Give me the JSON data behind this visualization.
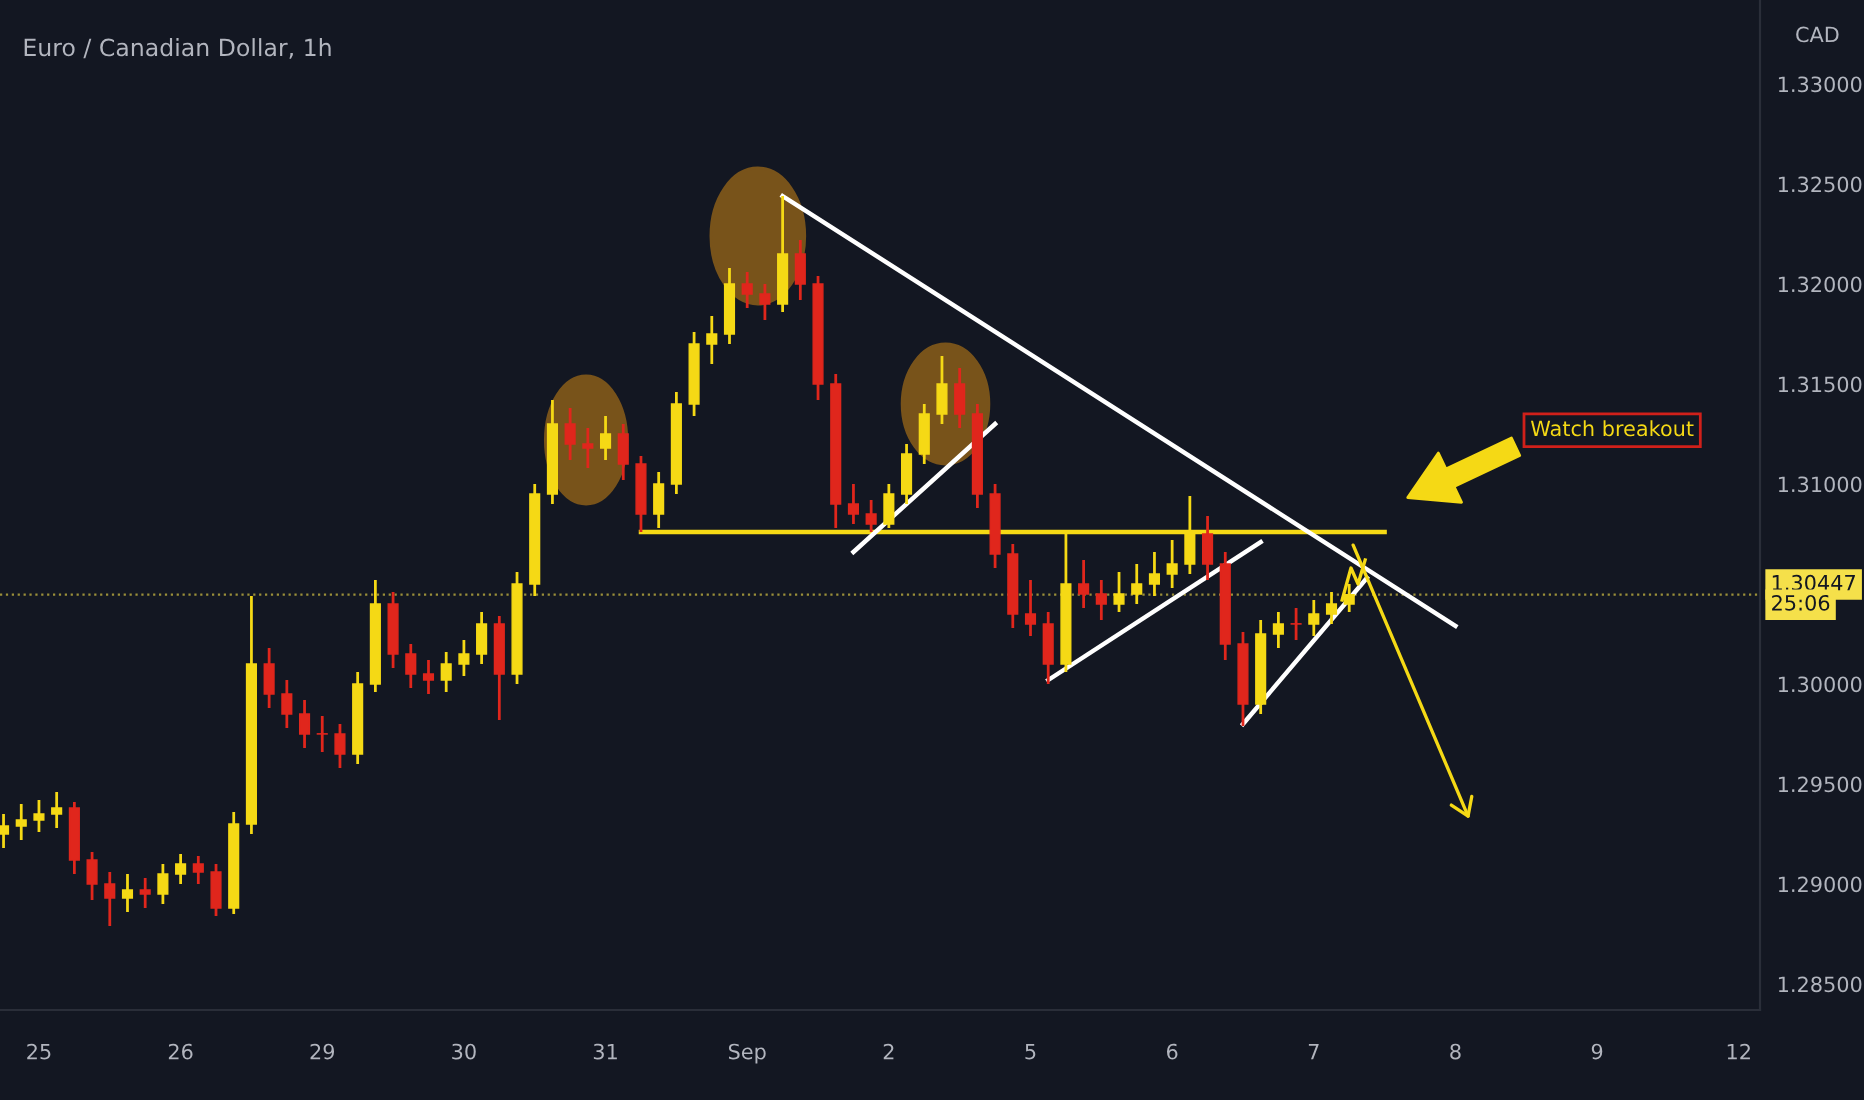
{
  "chart_data": {
    "type": "candlestick",
    "title": "Euro / Canadian Dollar, 1h",
    "ylabel": "CAD",
    "categories": [
      null,
      null,
      "25",
      null,
      null,
      null,
      null,
      null,
      null,
      null,
      "26",
      null,
      null,
      null,
      null,
      null,
      null,
      null,
      "29",
      null,
      null,
      null,
      null,
      null,
      null,
      null,
      "30",
      null,
      null,
      null,
      null,
      null,
      null,
      null,
      "31",
      null,
      null,
      null,
      null,
      null,
      null,
      null,
      "Sep",
      null,
      null,
      null,
      null,
      null,
      null,
      null,
      "2",
      null,
      null,
      null,
      null,
      null,
      null,
      null,
      "5",
      null,
      null,
      null,
      null,
      null,
      null,
      null,
      "6",
      null,
      null,
      null,
      null,
      null,
      null,
      null,
      "7",
      null,
      null,
      null,
      null,
      null,
      null,
      null,
      "8",
      null,
      null,
      null,
      null,
      null,
      null,
      null,
      "9",
      null,
      null,
      null,
      null,
      null,
      null,
      null,
      "12",
      null
    ],
    "ohlc": [
      [
        1.2925,
        1.2935,
        1.2918,
        1.2929
      ],
      [
        1.2929,
        1.294,
        1.2922,
        1.2932
      ],
      [
        1.2932,
        1.2942,
        1.2926,
        1.2935
      ],
      [
        1.2935,
        1.2946,
        1.2928,
        1.2938
      ],
      [
        1.2938,
        1.2941,
        1.2905,
        1.2912
      ],
      [
        1.2912,
        1.2916,
        1.2892,
        1.29
      ],
      [
        1.29,
        1.2906,
        1.2879,
        1.2893
      ],
      [
        1.2893,
        1.2905,
        1.2886,
        1.2897
      ],
      [
        1.2897,
        1.2903,
        1.2888,
        1.2895
      ],
      [
        1.2895,
        1.291,
        1.289,
        1.2905
      ],
      [
        1.2905,
        1.2915,
        1.29,
        1.291
      ],
      [
        1.291,
        1.2914,
        1.29,
        1.2906
      ],
      [
        1.2906,
        1.291,
        1.2884,
        1.2888
      ],
      [
        1.2888,
        1.2936,
        1.2885,
        1.293
      ],
      [
        1.293,
        1.3044,
        1.2925,
        1.301
      ],
      [
        1.301,
        1.3018,
        1.2988,
        1.2995
      ],
      [
        1.2995,
        1.3002,
        1.2978,
        1.2985
      ],
      [
        1.2985,
        1.2992,
        1.2968,
        1.2975
      ],
      [
        1.2975,
        1.2984,
        1.2966,
        1.2975
      ],
      [
        1.2975,
        1.298,
        1.2958,
        1.2965
      ],
      [
        1.2965,
        1.3006,
        1.296,
        1.3
      ],
      [
        1.3,
        1.3052,
        1.2996,
        1.304
      ],
      [
        1.304,
        1.3046,
        1.3008,
        1.3015
      ],
      [
        1.3015,
        1.302,
        1.2998,
        1.3005
      ],
      [
        1.3005,
        1.3012,
        1.2995,
        1.3002
      ],
      [
        1.3002,
        1.3016,
        1.2996,
        1.301
      ],
      [
        1.301,
        1.3022,
        1.3004,
        1.3015
      ],
      [
        1.3015,
        1.3036,
        1.301,
        1.303
      ],
      [
        1.303,
        1.3034,
        1.2982,
        1.3005
      ],
      [
        1.3005,
        1.3056,
        1.3,
        1.305
      ],
      [
        1.305,
        1.31,
        1.3044,
        1.3095
      ],
      [
        1.3095,
        1.3142,
        1.309,
        1.313
      ],
      [
        1.313,
        1.3138,
        1.3112,
        1.312
      ],
      [
        1.312,
        1.3128,
        1.3108,
        1.3118
      ],
      [
        1.3118,
        1.3134,
        1.3112,
        1.3125
      ],
      [
        1.3125,
        1.313,
        1.3102,
        1.311
      ],
      [
        1.311,
        1.3114,
        1.3076,
        1.3085
      ],
      [
        1.3085,
        1.3106,
        1.3078,
        1.31
      ],
      [
        1.31,
        1.3146,
        1.3095,
        1.314
      ],
      [
        1.314,
        1.3176,
        1.3134,
        1.317
      ],
      [
        1.317,
        1.3184,
        1.316,
        1.3175
      ],
      [
        1.3175,
        1.3208,
        1.317,
        1.32
      ],
      [
        1.32,
        1.3206,
        1.3188,
        1.3195
      ],
      [
        1.3195,
        1.32,
        1.3182,
        1.319
      ],
      [
        1.319,
        1.3244,
        1.3186,
        1.3215
      ],
      [
        1.3215,
        1.3222,
        1.3192,
        1.32
      ],
      [
        1.32,
        1.3204,
        1.3142,
        1.315
      ],
      [
        1.315,
        1.3155,
        1.3078,
        1.309
      ],
      [
        1.309,
        1.31,
        1.308,
        1.3085
      ],
      [
        1.3085,
        1.3092,
        1.3076,
        1.308
      ],
      [
        1.308,
        1.31,
        1.3078,
        1.3095
      ],
      [
        1.3095,
        1.312,
        1.309,
        1.3115
      ],
      [
        1.3115,
        1.314,
        1.311,
        1.3135
      ],
      [
        1.3135,
        1.3164,
        1.313,
        1.315
      ],
      [
        1.315,
        1.3158,
        1.3128,
        1.3135
      ],
      [
        1.3135,
        1.314,
        1.3088,
        1.3095
      ],
      [
        1.3095,
        1.31,
        1.3058,
        1.3065
      ],
      [
        1.3065,
        1.307,
        1.3028,
        1.3035
      ],
      [
        1.3035,
        1.3052,
        1.3024,
        1.303
      ],
      [
        1.303,
        1.3036,
        1.3,
        1.301
      ],
      [
        1.301,
        1.3075,
        1.3006,
        1.305
      ],
      [
        1.305,
        1.3062,
        1.3038,
        1.3045
      ],
      [
        1.3045,
        1.3052,
        1.3032,
        1.304
      ],
      [
        1.304,
        1.3056,
        1.3036,
        1.3045
      ],
      [
        1.3045,
        1.306,
        1.304,
        1.305
      ],
      [
        1.305,
        1.3066,
        1.3044,
        1.3055
      ],
      [
        1.3055,
        1.3072,
        1.3048,
        1.306
      ],
      [
        1.306,
        1.3094,
        1.3055,
        1.3075
      ],
      [
        1.3075,
        1.3084,
        1.3052,
        1.306
      ],
      [
        1.306,
        1.3066,
        1.3012,
        1.302
      ],
      [
        1.302,
        1.3026,
        1.2979,
        1.299
      ],
      [
        1.299,
        1.3032,
        1.2985,
        1.3025
      ],
      [
        1.3025,
        1.3036,
        1.3018,
        1.303
      ],
      [
        1.303,
        1.3038,
        1.3022,
        1.303
      ],
      [
        1.303,
        1.3042,
        1.3024,
        1.3035
      ],
      [
        1.3035,
        1.3046,
        1.303,
        1.304
      ],
      [
        1.304,
        1.305,
        1.3036,
        1.30447
      ],
      null,
      null,
      null,
      null,
      null,
      null,
      null,
      null,
      null,
      null,
      null,
      null,
      null,
      null,
      null,
      null,
      null,
      null,
      null,
      null,
      null,
      null,
      null
    ],
    "colors": [
      "#f5d915",
      "#f5d915",
      "#f5d915",
      "#f5d915",
      "#e0261c",
      "#e0261c",
      "#e0261c",
      "#f5d915",
      "#e0261c",
      "#f5d915",
      "#f5d915",
      "#e0261c",
      "#e0261c",
      "#f5d915",
      "#f5d915",
      "#e0261c",
      "#e0261c",
      "#e0261c",
      "#e0261c",
      "#e0261c",
      "#f5d915",
      "#f5d915",
      "#e0261c",
      "#e0261c",
      "#e0261c",
      "#f5d915",
      "#f5d915",
      "#f5d915",
      "#e0261c",
      "#f5d915",
      "#f5d915",
      "#f5d915",
      "#e0261c",
      "#e0261c",
      "#f5d915",
      "#e0261c",
      "#e0261c",
      "#f5d915",
      "#f5d915",
      "#f5d915",
      "#f5d915",
      "#f5d915",
      "#e0261c",
      "#e0261c",
      "#f5d915",
      "#e0261c",
      "#e0261c",
      "#e0261c",
      "#e0261c",
      "#e0261c",
      "#f5d915",
      "#f5d915",
      "#f5d915",
      "#f5d915",
      "#e0261c",
      "#e0261c",
      "#e0261c",
      "#e0261c",
      "#e0261c",
      "#e0261c",
      "#f5d915",
      "#e0261c",
      "#e0261c",
      "#f5d915",
      "#f5d915",
      "#f5d915",
      "#f5d915",
      "#f5d915",
      "#e0261c",
      "#e0261c",
      "#e0261c",
      "#f5d915",
      "#f5d915",
      "#e0261c",
      "#f5d915",
      "#f5d915",
      "#f5d915",
      null,
      null,
      null,
      null,
      null,
      null,
      null,
      null,
      null,
      null,
      null,
      null,
      null,
      null,
      null,
      null,
      null,
      null,
      null,
      null,
      null,
      null,
      null
    ],
    "series": [
      {
        "type": "line",
        "color": "#f5d915",
        "values": [
          null,
          null,
          null,
          null,
          null,
          null,
          null,
          null,
          null,
          null,
          null,
          null,
          null,
          null,
          null,
          null,
          null,
          null,
          null,
          null,
          null,
          null,
          null,
          null,
          null,
          null,
          null,
          null,
          null,
          null,
          null,
          null,
          null,
          null,
          null,
          null,
          1.3076,
          null,
          null,
          null,
          null,
          null,
          null,
          null,
          null,
          null,
          null,
          null,
          null,
          null,
          null,
          null,
          null,
          null,
          null,
          null,
          null,
          null,
          null,
          null,
          null,
          null,
          null,
          null,
          null,
          null,
          null,
          null,
          null,
          null,
          null,
          null,
          null,
          null,
          null,
          null,
          null,
          null,
          1.3076,
          null,
          null,
          null,
          null,
          null,
          null,
          null,
          null,
          null,
          null,
          null,
          null,
          null,
          null,
          null,
          null,
          null,
          null,
          null,
          null,
          null
        ]
      },
      {
        "type": "line",
        "color": "#ffffff",
        "values": [
          null,
          null,
          null,
          null,
          null,
          null,
          null,
          null,
          null,
          null,
          null,
          null,
          null,
          null,
          null,
          null,
          null,
          null,
          null,
          null,
          null,
          null,
          null,
          null,
          null,
          null,
          null,
          null,
          null,
          null,
          null,
          null,
          null,
          null,
          null,
          null,
          null,
          null,
          null,
          null,
          null,
          null,
          null,
          null,
          1.3244,
          null,
          null,
          null,
          null,
          null,
          null,
          null,
          null,
          null,
          null,
          null,
          null,
          null,
          null,
          null,
          null,
          null,
          null,
          null,
          null,
          null,
          null,
          null,
          null,
          null,
          null,
          null,
          null,
          null,
          null,
          null,
          null,
          null,
          null,
          null,
          null,
          null,
          1.3029,
          null,
          null,
          null,
          null,
          null,
          null,
          null,
          null,
          null,
          null,
          null,
          null,
          null,
          null,
          null,
          null,
          null
        ]
      },
      {
        "type": "line",
        "color": "#ffffff",
        "values": [
          null,
          null,
          null,
          null,
          null,
          null,
          null,
          null,
          null,
          null,
          null,
          null,
          null,
          null,
          null,
          null,
          null,
          null,
          null,
          null,
          null,
          null,
          null,
          null,
          null,
          null,
          null,
          null,
          null,
          null,
          null,
          null,
          null,
          null,
          null,
          null,
          null,
          null,
          null,
          null,
          null,
          null,
          null,
          null,
          null,
          null,
          null,
          null,
          1.3066,
          null,
          null,
          null,
          null,
          null,
          null,
          null,
          1.313,
          null,
          null,
          null,
          null,
          null,
          null,
          null,
          null,
          null,
          null,
          null,
          null,
          null,
          null,
          null,
          null,
          null,
          null,
          null,
          null,
          null,
          null,
          null,
          null,
          null,
          null,
          null,
          null,
          null,
          null,
          null,
          null,
          null,
          null,
          null,
          null,
          null,
          null,
          null,
          null,
          null,
          null,
          null
        ]
      },
      {
        "type": "line",
        "color": "#ffffff",
        "values": [
          null,
          null,
          null,
          null,
          null,
          null,
          null,
          null,
          null,
          null,
          null,
          null,
          null,
          null,
          null,
          null,
          null,
          null,
          null,
          null,
          null,
          null,
          null,
          null,
          null,
          null,
          null,
          null,
          null,
          null,
          null,
          null,
          null,
          null,
          null,
          null,
          null,
          null,
          null,
          null,
          null,
          null,
          null,
          null,
          null,
          null,
          null,
          null,
          null,
          null,
          null,
          null,
          null,
          null,
          null,
          null,
          null,
          null,
          null,
          1.3002,
          null,
          null,
          null,
          null,
          null,
          null,
          null,
          null,
          null,
          null,
          null,
          1.3071,
          null,
          null,
          null,
          null,
          null,
          null,
          null,
          null,
          null,
          null,
          null,
          null,
          null,
          null,
          null,
          null,
          null,
          null,
          null,
          null,
          null,
          null,
          null,
          null,
          null,
          null,
          null,
          null
        ]
      },
      {
        "type": "line",
        "color": "#ffffff",
        "values": [
          null,
          null,
          null,
          null,
          null,
          null,
          null,
          null,
          null,
          null,
          null,
          null,
          null,
          null,
          null,
          null,
          null,
          null,
          null,
          null,
          null,
          null,
          null,
          null,
          null,
          null,
          null,
          null,
          null,
          null,
          null,
          null,
          null,
          null,
          null,
          null,
          null,
          null,
          null,
          null,
          null,
          null,
          null,
          null,
          null,
          null,
          null,
          null,
          null,
          null,
          null,
          null,
          null,
          null,
          null,
          null,
          null,
          null,
          null,
          null,
          null,
          null,
          null,
          null,
          null,
          null,
          null,
          null,
          null,
          null,
          1.298,
          null,
          null,
          null,
          null,
          null,
          null,
          1.3053,
          null,
          null,
          null,
          null,
          null,
          null,
          null,
          null,
          null,
          null,
          null,
          null,
          null,
          null,
          null,
          null,
          null,
          null,
          null,
          null,
          null,
          null
        ]
      }
    ],
    "ylim": [
      1.2837,
      1.3342
    ],
    "yticks": [
      {
        "value": 1.285,
        "label": "1.28500"
      },
      {
        "value": 1.29,
        "label": "1.29000"
      },
      {
        "value": 1.295,
        "label": "1.29500"
      },
      {
        "value": 1.3,
        "label": "1.30000"
      },
      {
        "value": 1.31,
        "label": "1.31000"
      },
      {
        "value": 1.315,
        "label": "1.31500"
      },
      {
        "value": 1.32,
        "label": "1.32000"
      },
      {
        "value": 1.325,
        "label": "1.32500"
      },
      {
        "value": 1.33,
        "label": "1.33000"
      }
    ],
    "ref_lines": [
      {
        "axis": "y",
        "value": 1.30447,
        "label": "1.30447",
        "color": "#f5e04a",
        "line_style": "dotted"
      }
    ],
    "annotations": [
      "Watch breakout",
      "25:06"
    ],
    "grid": false
  }
}
